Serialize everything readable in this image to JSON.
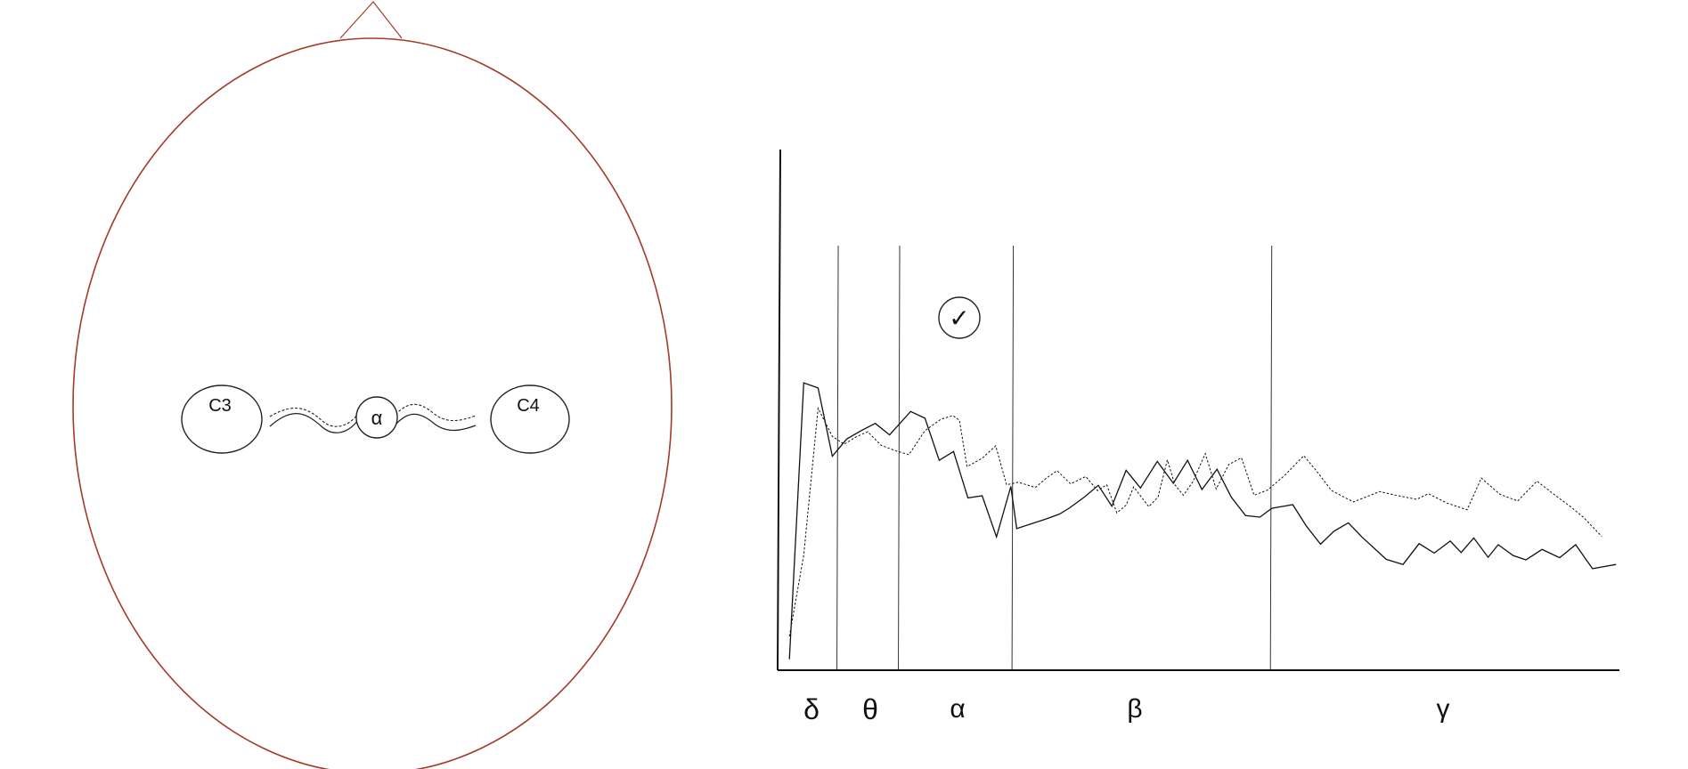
{
  "head_diagram": {
    "outline_color": "#a33a2a",
    "electrodes": [
      {
        "id": "left",
        "label": "C3"
      },
      {
        "id": "right",
        "label": "C4"
      }
    ],
    "connector": {
      "label": "α"
    }
  },
  "spectrum_panel": {
    "check_symbol": "✓",
    "bands": [
      {
        "label": "δ"
      },
      {
        "label": "θ"
      },
      {
        "label": "α"
      },
      {
        "label": "β"
      },
      {
        "label": "γ"
      }
    ]
  },
  "chart_data": {
    "type": "line",
    "title": "",
    "xlabel": "",
    "ylabel": "",
    "xlim": [
      0,
      100
    ],
    "ylim": [
      0,
      100
    ],
    "band_boundaries": [
      7.2,
      14.5,
      28,
      58.7
    ],
    "band_labels": [
      "δ",
      "θ",
      "α",
      "β",
      "γ"
    ],
    "highlighted_band": "α",
    "series": [
      {
        "style": "solid",
        "x": [
          1.4,
          3.1,
          4.8,
          6.5,
          8.2,
          9.9,
          11.6,
          13.3,
          15.8,
          17.5,
          19.2,
          20.9,
          22.6,
          24.3,
          26,
          27.7,
          28.4,
          30.1,
          31.8,
          33.5,
          34.7,
          36.4,
          38.1,
          39.7,
          41.4,
          43.1,
          45.1,
          47,
          48.7,
          50.4,
          52.2,
          53.9,
          55.6,
          57.3,
          58.7,
          61.2,
          62.8,
          64.5,
          66.1,
          67.8,
          69.4,
          72.3,
          74.3,
          76.2,
          78,
          79.9,
          81.2,
          82.7,
          84.4,
          85.6,
          87.4,
          88.9,
          90.8,
          92.9,
          94.8,
          96.8,
          99.6
        ],
        "y": [
          2.1,
          55.2,
          54.2,
          41.1,
          44.4,
          46,
          47.4,
          45.2,
          49.7,
          48.4,
          40.3,
          42,
          33.1,
          33.5,
          25.6,
          35.3,
          27.2,
          28.1,
          29,
          30,
          31.2,
          33.2,
          35.5,
          31.5,
          38.4,
          35,
          40.1,
          35.9,
          40.3,
          34.7,
          38.6,
          33.2,
          29.7,
          29.4,
          31.1,
          31.8,
          27.7,
          24.2,
          26.7,
          28.3,
          25.6,
          21.3,
          20.3,
          24.3,
          22.5,
          24.8,
          22.6,
          25.4,
          21.7,
          24.1,
          22,
          21.2,
          23.2,
          21.6,
          24.1,
          19.5,
          20.3
        ]
      },
      {
        "style": "dotted",
        "x": [
          1.4,
          3.1,
          4.8,
          6.5,
          7.9,
          9.3,
          10.7,
          12.3,
          14.1,
          15.6,
          17.5,
          19.4,
          20.8,
          21.6,
          22.5,
          24.3,
          25.9,
          27.2,
          28.6,
          30.6,
          32.1,
          33.2,
          34.8,
          36.6,
          38,
          39.1,
          40.3,
          41.4,
          42.3,
          44.1,
          45.2,
          46.3,
          47.2,
          48.2,
          49.3,
          50.8,
          52.1,
          53.6,
          55.1,
          56.6,
          58.2,
          60.3,
          62.5,
          64,
          65.8,
          68.4,
          71.5,
          73.2,
          75.9,
          77.3,
          79.5,
          81.9,
          83.6,
          85.8,
          87.9,
          90.2,
          92.3,
          94.2,
          95.7,
          97.9
        ],
        "y": [
          6.5,
          22.1,
          50.3,
          44.9,
          43.4,
          44.8,
          45.8,
          43.2,
          42.1,
          41.4,
          46,
          48.2,
          48.9,
          48,
          39.1,
          40.7,
          43.1,
          35.6,
          36.1,
          35.1,
          37.1,
          38.3,
          35.8,
          37.2,
          34.5,
          35.6,
          30.2,
          31.7,
          35.2,
          31.4,
          33.3,
          40.4,
          35.6,
          33.6,
          36.1,
          41.6,
          34.8,
          39.5,
          40.8,
          33.6,
          34.6,
          37.5,
          41.2,
          38.3,
          34.5,
          32.3,
          34.3,
          33.7,
          32.8,
          33.9,
          32.1,
          30.8,
          36.9,
          33.8,
          32.5,
          36.3,
          33.7,
          31.4,
          29.4,
          25.7
        ]
      }
    ],
    "grid": false,
    "legend": "none"
  }
}
